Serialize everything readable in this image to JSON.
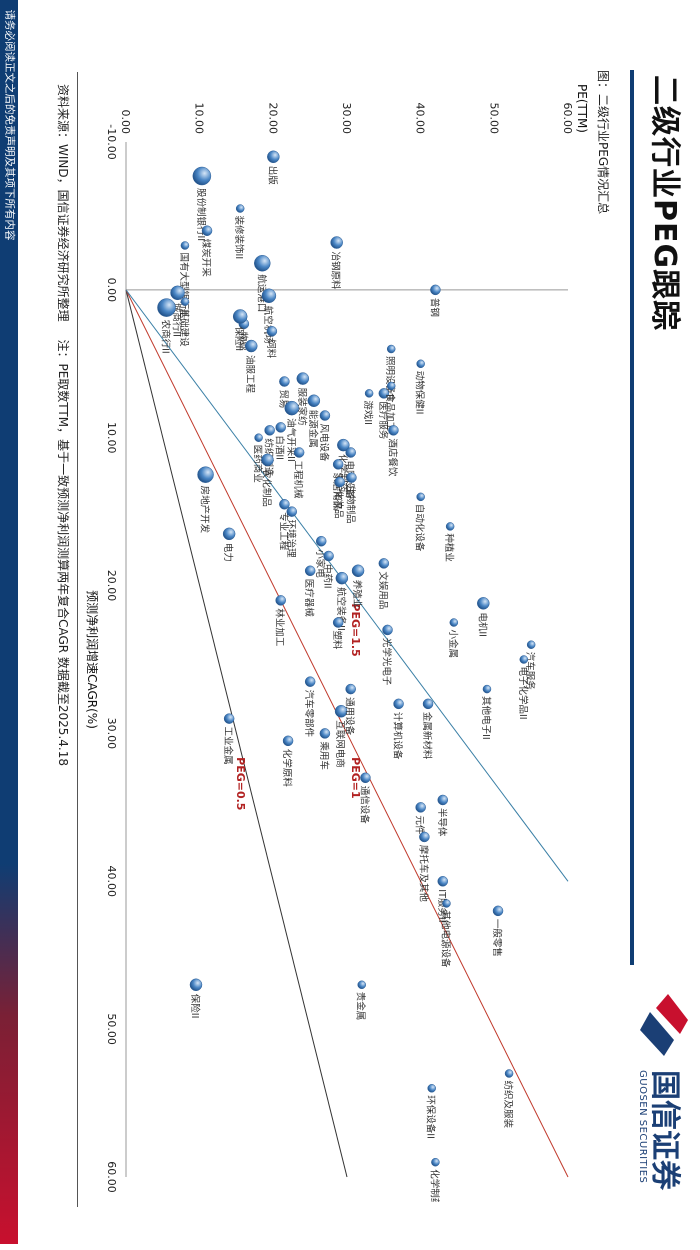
{
  "header": {
    "title": "二级行业PEG跟踪",
    "logo_cn": "国信证券",
    "logo_en": "GUOSEN SECURITIES"
  },
  "figure_label": "图：二级行业PEG情况汇总",
  "footer": {
    "source": "资料来源：WIND，国信证券经济研究所整理",
    "note": "注：PE取数TTM，基于一致预测净利润测算两年复合CAGR   数据截至2025.4.18"
  },
  "disclaimer": "请务必阅读正文之后的免责声明及其项下所有内容",
  "colors": {
    "accent": "#0f3d73",
    "bubble": "#4a86c5",
    "peg_red": "#c0392b",
    "peg_blue": "#3a7fa6",
    "peg_dark": "#333333"
  },
  "chart_data": {
    "type": "scatter",
    "xlabel": "预测净利润增速CAGR(%)",
    "ylabel": "PE(TTM)",
    "xlim": [
      -10,
      60
    ],
    "ylim": [
      0,
      60
    ],
    "x_ticks": [
      "-10.00",
      "0.00",
      "10.00",
      "20.00",
      "30.00",
      "40.00",
      "50.00",
      "60.00"
    ],
    "y_ticks": [
      "0.00",
      "10.00",
      "20.00",
      "30.00",
      "40.00",
      "50.00",
      "60.00"
    ],
    "reference_lines": [
      {
        "label": "PEG=0.5",
        "slope": 0.5
      },
      {
        "label": "PEG=1",
        "slope": 1.0
      },
      {
        "label": "PEG=1.5",
        "slope": 1.5
      }
    ],
    "points": [
      {
        "name": "出版",
        "x": -9.0,
        "y": 20.0,
        "size": 6
      },
      {
        "name": "股份制银行II",
        "x": -7.7,
        "y": 10.3,
        "size": 9
      },
      {
        "name": "装修装饰II",
        "x": -5.5,
        "y": 15.5,
        "size": 4
      },
      {
        "name": "煤炭开采",
        "x": -4.0,
        "y": 11.0,
        "size": 5
      },
      {
        "name": "国有大型银行II",
        "x": -3.0,
        "y": 8.0,
        "size": 4
      },
      {
        "name": "冶钢原料",
        "x": -3.2,
        "y": 28.6,
        "size": 6
      },
      {
        "name": "航运港口",
        "x": -1.8,
        "y": 18.5,
        "size": 8
      },
      {
        "name": "城商行II",
        "x": 0.2,
        "y": 7.0,
        "size": 7
      },
      {
        "name": "基础建设",
        "x": 0.8,
        "y": 8.0,
        "size": 4
      },
      {
        "name": "农商行II",
        "x": 1.2,
        "y": 5.5,
        "size": 9
      },
      {
        "name": "物业",
        "x": 2.3,
        "y": 16.0,
        "size": 5
      },
      {
        "name": "普钢",
        "x": 0.0,
        "y": 42.0,
        "size": 5
      },
      {
        "name": "航空机场",
        "x": 0.4,
        "y": 19.4,
        "size": 7
      },
      {
        "name": "保险II",
        "x": 1.8,
        "y": 15.5,
        "size": 7
      },
      {
        "name": "饲料",
        "x": 2.8,
        "y": 19.8,
        "size": 5
      },
      {
        "name": "油服工程",
        "x": 3.8,
        "y": 17.0,
        "size": 6
      },
      {
        "name": "动物保健II",
        "x": 5.0,
        "y": 40.0,
        "size": 4
      },
      {
        "name": "照明设备II",
        "x": 4.0,
        "y": 36.0,
        "size": 4
      },
      {
        "name": "医疗服务",
        "x": 7.0,
        "y": 35.0,
        "size": 5
      },
      {
        "name": "服装家纺",
        "x": 6.0,
        "y": 24.0,
        "size": 6
      },
      {
        "name": "游戏II",
        "x": 7.0,
        "y": 33.0,
        "size": 4
      },
      {
        "name": "贸易",
        "x": 6.2,
        "y": 21.5,
        "size": 5
      },
      {
        "name": "食品加工",
        "x": 6.5,
        "y": 36.0,
        "size": 4
      },
      {
        "name": "能源金属",
        "x": 7.5,
        "y": 25.5,
        "size": 6
      },
      {
        "name": "油气开采II",
        "x": 8.0,
        "y": 22.5,
        "size": 7
      },
      {
        "name": "风电设备",
        "x": 8.5,
        "y": 27.0,
        "size": 5
      },
      {
        "name": "纺织制造",
        "x": 9.5,
        "y": 19.5,
        "size": 5
      },
      {
        "name": "白酒II",
        "x": 9.3,
        "y": 21.0,
        "size": 5
      },
      {
        "name": "医药商业",
        "x": 10.0,
        "y": 18.0,
        "size": 4
      },
      {
        "name": "化学制药",
        "x": 10.5,
        "y": 29.5,
        "size": 6
      },
      {
        "name": "电网设备",
        "x": 11.0,
        "y": 30.5,
        "size": 5
      },
      {
        "name": "工程机械",
        "x": 11.0,
        "y": 23.5,
        "size": 5
      },
      {
        "name": "酒店餐饮",
        "x": 9.5,
        "y": 36.3,
        "size": 5
      },
      {
        "name": "家居用品",
        "x": 11.8,
        "y": 28.8,
        "size": 5
      },
      {
        "name": "化妆品",
        "x": 13.0,
        "y": 29.0,
        "size": 5
      },
      {
        "name": "生物制品",
        "x": 12.7,
        "y": 30.6,
        "size": 5
      },
      {
        "name": "自动化设备",
        "x": 14.0,
        "y": 40.0,
        "size": 4
      },
      {
        "name": "农化制品",
        "x": 11.5,
        "y": 19.2,
        "size": 6
      },
      {
        "name": "房地产开发",
        "x": 12.5,
        "y": 10.8,
        "size": 8
      },
      {
        "name": "专业工程",
        "x": 14.5,
        "y": 21.5,
        "size": 5
      },
      {
        "name": "环境治理",
        "x": 15.0,
        "y": 22.5,
        "size": 5
      },
      {
        "name": "电力",
        "x": 16.5,
        "y": 14.0,
        "size": 6
      },
      {
        "name": "种植业",
        "x": 16.0,
        "y": 44.0,
        "size": 4
      },
      {
        "name": "小家电",
        "x": 17.0,
        "y": 26.5,
        "size": 5
      },
      {
        "name": "文娱用品",
        "x": 18.5,
        "y": 35.0,
        "size": 5
      },
      {
        "name": "中药II",
        "x": 18.0,
        "y": 27.5,
        "size": 5
      },
      {
        "name": "医疗器械",
        "x": 19.0,
        "y": 25.0,
        "size": 5
      },
      {
        "name": "航空装备II",
        "x": 19.5,
        "y": 29.3,
        "size": 6
      },
      {
        "name": "养殖业",
        "x": 19.0,
        "y": 31.5,
        "size": 6
      },
      {
        "name": "林业加工",
        "x": 21.0,
        "y": 21.0,
        "size": 5
      },
      {
        "name": "塑料",
        "x": 22.5,
        "y": 28.8,
        "size": 5
      },
      {
        "name": "电机II",
        "x": 21.2,
        "y": 48.5,
        "size": 6
      },
      {
        "name": "光学光电子",
        "x": 23.0,
        "y": 35.5,
        "size": 5
      },
      {
        "name": "小金属",
        "x": 22.5,
        "y": 44.5,
        "size": 4
      },
      {
        "name": "汽车服务",
        "x": 24.0,
        "y": 55.0,
        "size": 4
      },
      {
        "name": "电子化学品II",
        "x": 25.0,
        "y": 54.0,
        "size": 4
      },
      {
        "name": "其他电子II",
        "x": 27.0,
        "y": 49.0,
        "size": 4
      },
      {
        "name": "计算机设备",
        "x": 28.0,
        "y": 37.0,
        "size": 5
      },
      {
        "name": "互联网电商",
        "x": 28.5,
        "y": 29.2,
        "size": 6
      },
      {
        "name": "汽车零部件",
        "x": 26.5,
        "y": 25.0,
        "size": 5
      },
      {
        "name": "通用设备",
        "x": 27.0,
        "y": 30.5,
        "size": 5
      },
      {
        "name": "金属新材料",
        "x": 28.0,
        "y": 41.0,
        "size": 5
      },
      {
        "name": "乘用车",
        "x": 30.0,
        "y": 27.0,
        "size": 5
      },
      {
        "name": "化学原料",
        "x": 30.5,
        "y": 22.0,
        "size": 5
      },
      {
        "name": "工业金属",
        "x": 29.0,
        "y": 14.0,
        "size": 5
      },
      {
        "name": "通信设备",
        "x": 33.0,
        "y": 32.5,
        "size": 5
      },
      {
        "name": "元件",
        "x": 35.0,
        "y": 40.0,
        "size": 5
      },
      {
        "name": "半导体",
        "x": 34.5,
        "y": 43.0,
        "size": 5
      },
      {
        "name": "摩托车及其他",
        "x": 37.0,
        "y": 40.5,
        "size": 5
      },
      {
        "name": "IT服务II",
        "x": 40.0,
        "y": 43.0,
        "size": 5
      },
      {
        "name": "一般零售",
        "x": 42.0,
        "y": 50.5,
        "size": 5
      },
      {
        "name": "其他电源设备",
        "x": 41.5,
        "y": 43.5,
        "size": 4
      },
      {
        "name": "贵金属",
        "x": 47.0,
        "y": 32.0,
        "size": 4
      },
      {
        "name": "保险II",
        "x": 47.0,
        "y": 9.5,
        "size": 6
      },
      {
        "name": "纺织及服装",
        "x": 53.0,
        "y": 52.0,
        "size": 4
      },
      {
        "name": "环保设备II",
        "x": 54.0,
        "y": 41.5,
        "size": 4
      },
      {
        "name": "化学制药",
        "x": 59.0,
        "y": 42.0,
        "size": 4
      }
    ]
  }
}
